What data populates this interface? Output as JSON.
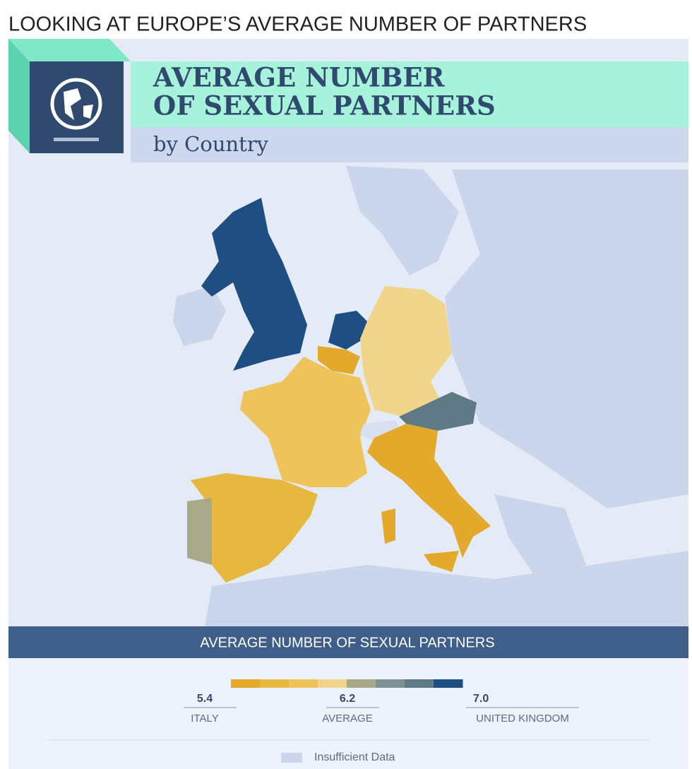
{
  "heading": "LOOKING AT EUROPE’S AVERAGE NUMBER OF PARTNERS",
  "header": {
    "title_lines": [
      "AVERAGE NUMBER",
      "OF SEXUAL PARTNERS"
    ],
    "subtitle": "by Country"
  },
  "legend": {
    "title": "AVERAGE NUMBER OF SEXUAL PARTNERS",
    "colors": [
      "#e3a92a",
      "#e6b840",
      "#edc35a",
      "#f0d58a",
      "#a8a88a",
      "#7f9195",
      "#5f7a86",
      "#1f4e82"
    ],
    "markers": [
      {
        "value": "5.4",
        "label": "ITALY"
      },
      {
        "value": "6.2",
        "label": "AVERAGE"
      },
      {
        "value": "7.0",
        "label": "UNITED KINGDOM"
      }
    ],
    "insufficient_label": "Insufficient Data",
    "insufficient_color": "#cbd5ec"
  }
}
